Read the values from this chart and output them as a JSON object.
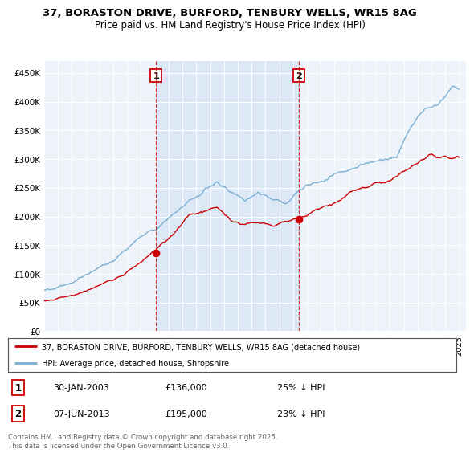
{
  "title_line1": "37, BORASTON DRIVE, BURFORD, TENBURY WELLS, WR15 8AG",
  "title_line2": "Price paid vs. HM Land Registry's House Price Index (HPI)",
  "ylabel_ticks": [
    "£0",
    "£50K",
    "£100K",
    "£150K",
    "£200K",
    "£250K",
    "£300K",
    "£350K",
    "£400K",
    "£450K"
  ],
  "ytick_values": [
    0,
    50000,
    100000,
    150000,
    200000,
    250000,
    300000,
    350000,
    400000,
    450000
  ],
  "ylim": [
    0,
    470000
  ],
  "color_red": "#cc0000",
  "color_blue": "#7aafd4",
  "shade_color": "#dce8f5",
  "legend_label_red": "37, BORASTON DRIVE, BURFORD, TENBURY WELLS, WR15 8AG (detached house)",
  "legend_label_blue": "HPI: Average price, detached house, Shropshire",
  "m1_year": 2003.08,
  "m1_price": 136000,
  "m1_label": "1",
  "m1_date_str": "30-JAN-2003",
  "m1_pct": "25% ↓ HPI",
  "m2_year": 2013.42,
  "m2_price": 195000,
  "m2_label": "2",
  "m2_date_str": "07-JUN-2013",
  "m2_pct": "23% ↓ HPI",
  "footer_text": "Contains HM Land Registry data © Crown copyright and database right 2025.\nThis data is licensed under the Open Government Licence v3.0.",
  "background_color": "#ffffff",
  "plot_bg_color": "#eef3fa"
}
